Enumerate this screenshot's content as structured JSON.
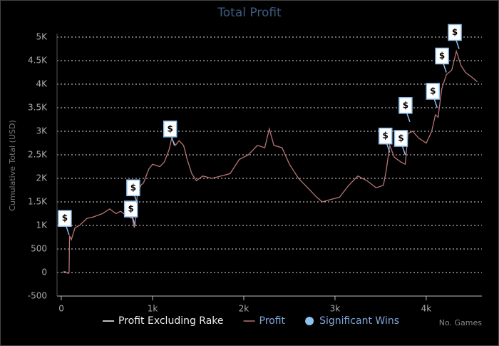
{
  "chart_data": {
    "type": "line",
    "title": "Total Profit",
    "y_label": "Cumulative Total (USD)",
    "x_label": "No. Games",
    "xlim": [
      -47,
      4610
    ],
    "ylim": [
      -500,
      5000
    ],
    "xticks": [
      0,
      {
        "value": 1000,
        "label": "1k"
      },
      {
        "value": 2000,
        "label": "2k"
      },
      {
        "value": 3000,
        "label": "3k"
      },
      {
        "value": 4000,
        "label": "4k"
      }
    ],
    "yticks": [
      -500,
      0,
      500,
      {
        "value": 1000,
        "label": "1K"
      },
      {
        "value": 1500,
        "label": "1.5K"
      },
      {
        "value": 2000,
        "label": "2K"
      },
      {
        "value": 2500,
        "label": "2.5K"
      },
      {
        "value": 3000,
        "label": "3K"
      },
      {
        "value": 3500,
        "label": "3.5K"
      },
      {
        "value": 4000,
        "label": "4K"
      },
      {
        "value": 4500,
        "label": "4.5K"
      },
      {
        "value": 5000,
        "label": "5K"
      }
    ],
    "grid": true,
    "series": [
      {
        "name": "Profit Excluding Rake",
        "color": "#ffffff",
        "x": [],
        "values": []
      },
      {
        "name": "Profit",
        "color": "#b87474",
        "x": [
          0,
          40,
          75,
          85,
          90,
          110,
          150,
          200,
          280,
          350,
          450,
          530,
          600,
          650,
          720,
          780,
          800,
          820,
          830,
          870,
          900,
          960,
          1000,
          1080,
          1130,
          1180,
          1210,
          1250,
          1290,
          1340,
          1380,
          1430,
          1480,
          1550,
          1650,
          1750,
          1850,
          1950,
          2050,
          2150,
          2230,
          2280,
          2330,
          2420,
          2500,
          2600,
          2700,
          2800,
          2860,
          2950,
          3050,
          3150,
          3250,
          3350,
          3450,
          3530,
          3560,
          3600,
          3650,
          3720,
          3770,
          3800,
          3850,
          3920,
          4000,
          4060,
          4100,
          4130,
          4170,
          4220,
          4280,
          4330,
          4380,
          4430,
          4500,
          4560
        ],
        "values": [
          0,
          20,
          -20,
          0,
          780,
          700,
          950,
          1000,
          1150,
          1180,
          1250,
          1350,
          1250,
          1300,
          1200,
          1150,
          950,
          1200,
          1600,
          1850,
          1900,
          2200,
          2300,
          2250,
          2350,
          2600,
          2850,
          2700,
          2800,
          2700,
          2400,
          2100,
          1950,
          2050,
          2000,
          2050,
          2100,
          2400,
          2500,
          2700,
          2650,
          3050,
          2700,
          2650,
          2300,
          2000,
          1800,
          1600,
          1500,
          1550,
          1600,
          1850,
          2050,
          1950,
          1800,
          1850,
          2150,
          2700,
          2450,
          2350,
          2300,
          2950,
          3000,
          2850,
          2750,
          3000,
          3350,
          3300,
          3900,
          4200,
          4300,
          4700,
          4400,
          4250,
          4150,
          4050
        ]
      }
    ],
    "significant_wins": {
      "name": "Significant Wins",
      "color": "#8fc1ee",
      "flag_label": "$",
      "x": [
        85,
        810,
        835,
        1240,
        3600,
        3770,
        3820,
        4120,
        4220,
        4360
      ],
      "y": [
        800,
        1000,
        1450,
        2700,
        2550,
        2500,
        3200,
        3500,
        4250,
        4750
      ]
    }
  }
}
